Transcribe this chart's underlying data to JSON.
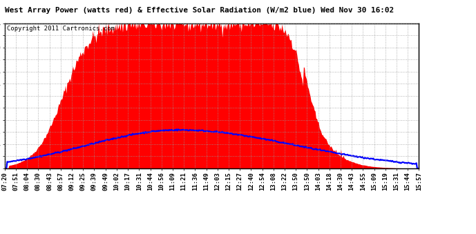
{
  "title": "West Array Power (watts red) & Effective Solar Radiation (W/m2 blue) Wed Nov 30 16:02",
  "copyright": "Copyright 2011 Cartronics.com",
  "ymax": 1658.4,
  "yticks": [
    0.0,
    138.2,
    276.4,
    414.6,
    552.8,
    691.0,
    829.2,
    967.4,
    1105.6,
    1243.8,
    1382.0,
    1520.2,
    1658.4
  ],
  "bg_color": "#ffffff",
  "grid_color": "#999999",
  "fill_color": "red",
  "line_color": "blue",
  "xtick_labels": [
    "07:20",
    "07:51",
    "08:04",
    "08:30",
    "08:43",
    "08:57",
    "09:12",
    "09:25",
    "09:39",
    "09:49",
    "10:02",
    "10:17",
    "10:31",
    "10:44",
    "10:56",
    "11:09",
    "11:21",
    "11:36",
    "11:49",
    "12:03",
    "12:15",
    "12:27",
    "12:40",
    "12:54",
    "13:08",
    "13:22",
    "13:50",
    "13:50",
    "14:03",
    "14:18",
    "14:30",
    "14:43",
    "14:55",
    "15:09",
    "15:19",
    "15:31",
    "15:44",
    "15:57"
  ],
  "power_peak": 1658.4,
  "solar_peak": 440.0,
  "n_points": 500
}
